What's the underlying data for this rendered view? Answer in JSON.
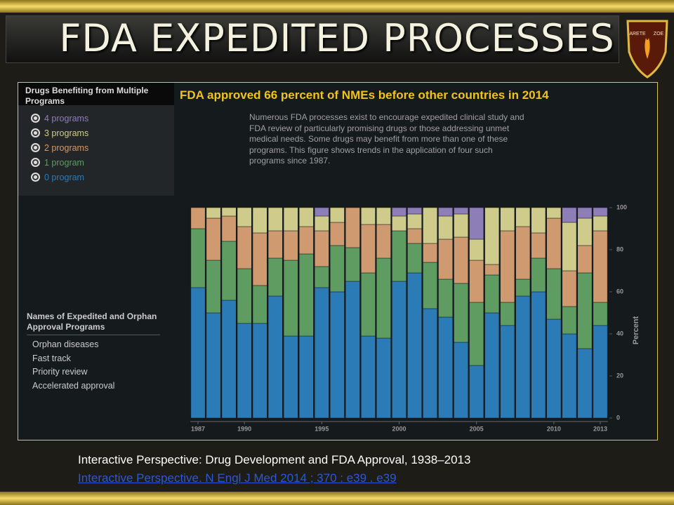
{
  "slide": {
    "title": "FDA EXPEDITED PROCESSES",
    "logo": [
      "ARETE",
      "ZOE"
    ],
    "caption": "Interactive Perspective: Drug Development and FDA Approval, 1938–2013",
    "link": "Interactive Perspective. N Engl J Med 2014 ; 370 : e39 . e39",
    "panel": {
      "heading": "Names of Expedited and Orphan Approval Programs",
      "items": [
        "Orphan diseases",
        "Fast track",
        "Priority review",
        "Accelerated approval"
      ]
    }
  },
  "chart_data": {
    "type": "stacked-bar",
    "title": "FDA approved 66 percent of NMEs before other countries in 2014",
    "subtitle": "Numerous FDA processes exist to encourage expedited clinical study and FDA review of particularly promising drugs or those addressing unmet medical needs.  Some drugs may benefit from more than one of these programs.  This figure shows trends in the application of four such programs since 1987.",
    "legend_title": "Drugs Benefiting from Multiple Programs",
    "y_label": "Percent",
    "categories": [
      "1987",
      null,
      null,
      "1990",
      null,
      null,
      null,
      null,
      "1995",
      null,
      null,
      null,
      null,
      "2000",
      null,
      null,
      null,
      null,
      "2005",
      null,
      null,
      null,
      null,
      "2010",
      null,
      null,
      "2013"
    ],
    "series": [
      {
        "name": "0 program",
        "color": "#2b7bb6",
        "values": [
          62,
          50,
          56,
          45,
          45,
          58,
          39,
          39,
          62,
          60,
          65,
          39,
          38,
          65,
          69,
          52,
          48,
          36,
          25,
          50,
          44,
          58,
          60,
          47,
          40,
          33,
          44
        ]
      },
      {
        "name": "1 program",
        "color": "#5e9c62",
        "values": [
          28,
          25,
          28,
          26,
          18,
          18,
          36,
          39,
          10,
          22,
          16,
          30,
          38,
          24,
          14,
          22,
          18,
          28,
          30,
          18,
          11,
          8,
          16,
          24,
          13,
          36,
          11
        ]
      },
      {
        "name": "2 programs",
        "color": "#cf9a6f",
        "values": [
          10,
          20,
          12,
          20,
          25,
          13,
          14,
          13,
          17,
          11,
          19,
          23,
          16,
          0,
          7,
          9,
          19,
          22,
          20,
          5,
          34,
          25,
          12,
          24,
          17,
          13,
          34
        ]
      },
      {
        "name": "3 programs",
        "color": "#cfcc8b",
        "values": [
          0,
          5,
          4,
          9,
          12,
          11,
          11,
          9,
          7,
          7,
          0,
          8,
          8,
          7,
          7,
          17,
          11,
          11,
          10,
          27,
          11,
          9,
          12,
          5,
          23,
          13,
          7
        ]
      },
      {
        "name": "4 programs",
        "color": "#8e7eb8",
        "values": [
          0,
          0,
          0,
          0,
          0,
          0,
          0,
          0,
          4,
          0,
          0,
          0,
          0,
          4,
          3,
          0,
          4,
          3,
          15,
          0,
          0,
          0,
          0,
          0,
          7,
          5,
          4
        ]
      }
    ],
    "ylim": [
      0,
      100
    ],
    "yticks": [
      0,
      20,
      40,
      60,
      80,
      100
    ]
  }
}
